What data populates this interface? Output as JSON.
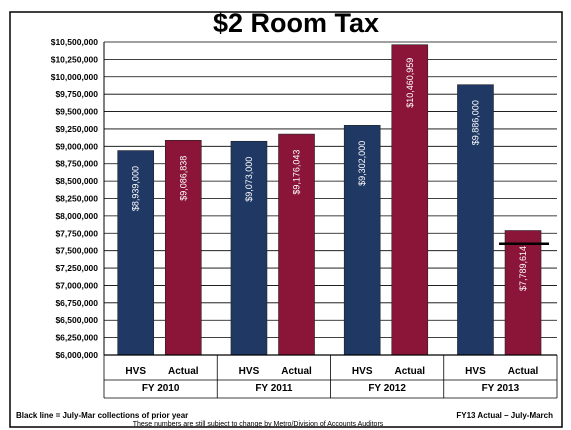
{
  "chart_data": {
    "type": "bar",
    "title": "$2 Room Tax",
    "ylim": [
      6000000,
      10500000
    ],
    "yticks": [
      "$10,500,000",
      "$10,250,000",
      "$10,000,000",
      "$9,750,000",
      "$9,500,000",
      "$9,250,000",
      "$9,000,000",
      "$8,750,000",
      "$8,500,000",
      "$8,250,000",
      "$8,000,000",
      "$7,750,000",
      "$7,500,000",
      "$7,250,000",
      "$7,000,000",
      "$6,750,000",
      "$6,500,000",
      "$6,250,000",
      "$6,000,000"
    ],
    "groups": [
      {
        "name": "FY 2010",
        "bars": [
          {
            "label": "HVS",
            "value": 8939000,
            "text": "$8,939,000"
          },
          {
            "label": "Actual",
            "value": 9086838,
            "text": "$9,086,838"
          }
        ]
      },
      {
        "name": "FY 2011",
        "bars": [
          {
            "label": "HVS",
            "value": 9073000,
            "text": "$9,073,000"
          },
          {
            "label": "Actual",
            "value": 9176043,
            "text": "$9,176,043"
          }
        ]
      },
      {
        "name": "FY 2012",
        "bars": [
          {
            "label": "HVS",
            "value": 9302000,
            "text": "$9,302,000"
          },
          {
            "label": "Actual",
            "value": 10460959,
            "text": "$10,460,959"
          }
        ]
      },
      {
        "name": "FY 2013",
        "bars": [
          {
            "label": "HVS",
            "value": 9886000,
            "text": "$9,886,000"
          },
          {
            "label": "Actual",
            "value": 7789614,
            "text": "$7,789,614"
          }
        ]
      }
    ],
    "reference_line": {
      "group": 3,
      "bar": 1,
      "value": 7600000
    },
    "colors": {
      "HVS": "#1f3864",
      "Actual": "#8b1538",
      "frame": "#000000"
    },
    "grid": true
  },
  "footnotes": {
    "left": "Black line = July-Mar collections of prior year",
    "center": "These numbers are still subject to change by Metro/Division of Accounts Auditors",
    "right": "FY13 Actual – July-March"
  }
}
